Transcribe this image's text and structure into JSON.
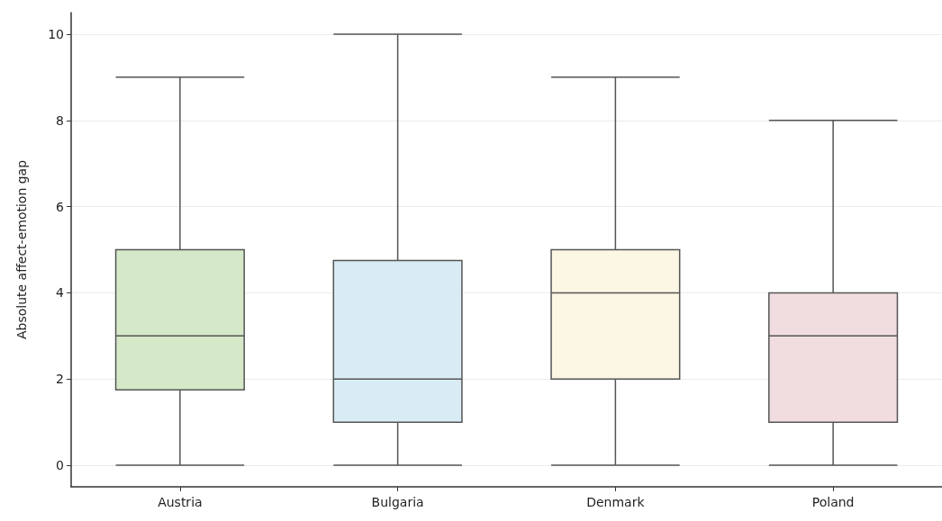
{
  "chart_data": {
    "type": "box",
    "ylabel": "Absolute affect-emotion gap",
    "categories": [
      "Austria",
      "Bulgaria",
      "Denmark",
      "Poland"
    ],
    "boxes": [
      {
        "low": 0,
        "q1": 1.75,
        "median": 3,
        "q3": 5,
        "high": 9
      },
      {
        "low": 0,
        "q1": 1,
        "median": 2,
        "q3": 4.75,
        "high": 10
      },
      {
        "low": 0,
        "q1": 2,
        "median": 4,
        "q3": 5,
        "high": 9
      },
      {
        "low": 0,
        "q1": 1,
        "median": 3,
        "q3": 4,
        "high": 8
      }
    ],
    "colors": [
      "#d5e8c8",
      "#d9ebf4",
      "#fcf6e4",
      "#f1dde0"
    ],
    "ylim": [
      -0.5,
      10.5
    ],
    "yticks": [
      0,
      2,
      4,
      6,
      8,
      10
    ],
    "grid": "y"
  }
}
